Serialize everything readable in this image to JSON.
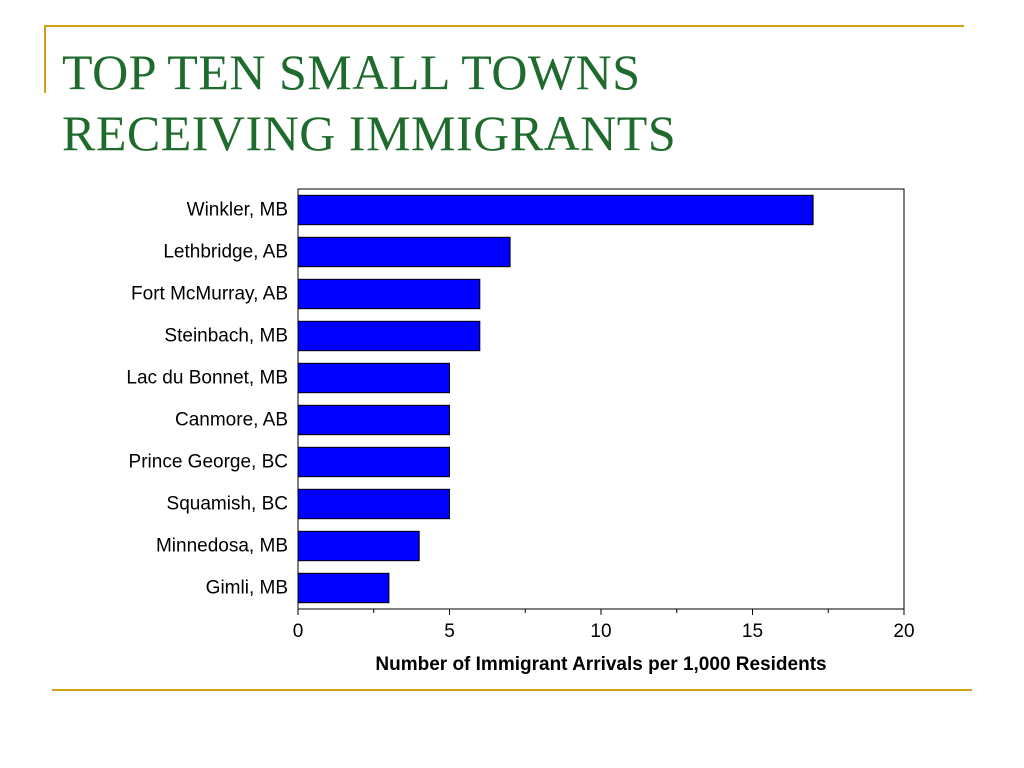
{
  "slide": {
    "title_line1": "TOP TEN SMALL TOWNS",
    "title_line2": "RECEIVING IMMIGRANTS"
  },
  "colors": {
    "title": "#1f6b2e",
    "rule": "#d4a017",
    "bar_fill": "#0000ff",
    "bar_stroke": "#000000",
    "text": "#000000"
  },
  "chart_data": {
    "type": "bar",
    "orientation": "horizontal",
    "categories": [
      "Winkler, MB",
      "Lethbridge, AB",
      "Fort McMurray, AB",
      "Steinbach, MB",
      "Lac du Bonnet, MB",
      "Canmore, AB",
      "Prince George, BC",
      "Squamish, BC",
      "Minnedosa, MB",
      "Gimli, MB"
    ],
    "values": [
      17,
      7,
      6,
      6,
      5,
      5,
      5,
      5,
      4,
      3
    ],
    "xlabel": "Number of Immigrant Arrivals per 1,000 Residents",
    "ylabel": "",
    "xlim": [
      0,
      20
    ],
    "xticks": [
      0,
      5,
      10,
      15,
      20
    ],
    "grid": false,
    "legend": "none"
  }
}
